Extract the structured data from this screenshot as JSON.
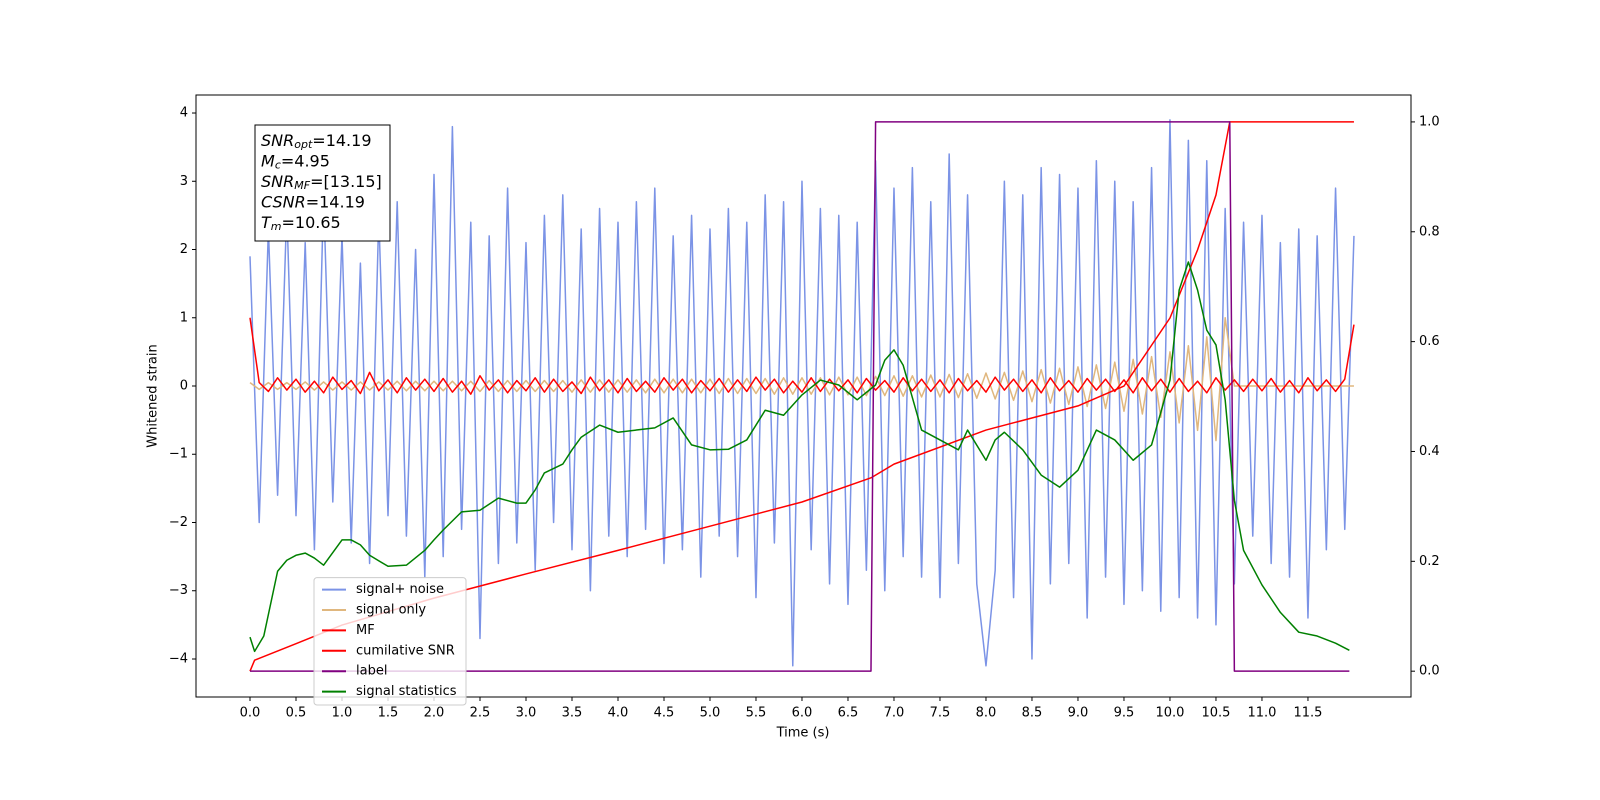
{
  "chart_data": {
    "type": "line",
    "xlabel": "Time (s)",
    "ylabel": "Whitened strain",
    "annotations": [
      {
        "name": "SNR",
        "sub": "opt",
        "text": "=14.19"
      },
      {
        "name": "M",
        "sub": "c",
        "text": "=4.95"
      },
      {
        "name": "SNR",
        "sub": "MF",
        "text": "=[13.15]"
      },
      {
        "name": "CSNR",
        "sub": "",
        "text": "=14.19"
      },
      {
        "name": "T",
        "sub": "m",
        "text": "=10.65"
      }
    ],
    "legend": "lower left",
    "xlim": [
      -0.587,
      12.62
    ],
    "ylim": [
      -4.557,
      4.264
    ],
    "y2lim": [
      -0.047,
      1.049
    ],
    "xticks": [
      {
        "value": 0,
        "label": "0.0"
      },
      {
        "value": 0.5,
        "label": "0.5"
      },
      {
        "value": 1,
        "label": "1.0"
      },
      {
        "value": 1.5,
        "label": "1.5"
      },
      {
        "value": 2,
        "label": "2.0"
      },
      {
        "value": 2.5,
        "label": "2.5"
      },
      {
        "value": 3,
        "label": "3.0"
      },
      {
        "value": 3.5,
        "label": "3.5"
      },
      {
        "value": 4,
        "label": "4.0"
      },
      {
        "value": 4.5,
        "label": "4.5"
      },
      {
        "value": 5,
        "label": "5.0"
      },
      {
        "value": 5.5,
        "label": "5.5"
      },
      {
        "value": 6,
        "label": "6.0"
      },
      {
        "value": 6.5,
        "label": "6.5"
      },
      {
        "value": 7,
        "label": "7.0"
      },
      {
        "value": 7.5,
        "label": "7.5"
      },
      {
        "value": 8,
        "label": "8.0"
      },
      {
        "value": 8.5,
        "label": "8.5"
      },
      {
        "value": 9,
        "label": "9.0"
      },
      {
        "value": 9.5,
        "label": "9.5"
      },
      {
        "value": 10,
        "label": "10.0"
      },
      {
        "value": 10.5,
        "label": "10.5"
      },
      {
        "value": 11,
        "label": "11.0"
      },
      {
        "value": 11.5,
        "label": "11.5"
      }
    ],
    "yticks": [
      {
        "value": -4,
        "label": "−4"
      },
      {
        "value": -3,
        "label": "−3"
      },
      {
        "value": -2,
        "label": "−2"
      },
      {
        "value": -1,
        "label": "−1"
      },
      0,
      1,
      2,
      3,
      4
    ],
    "y2ticks": [
      {
        "value": 0,
        "label": "0.0"
      },
      {
        "value": 0.2,
        "label": "0.2"
      },
      {
        "value": 0.4,
        "label": "0.4"
      },
      {
        "value": 0.6,
        "label": "0.6"
      },
      {
        "value": 0.8,
        "label": "0.8"
      },
      {
        "value": 1,
        "label": "1.0"
      }
    ],
    "x": [
      0,
      0.1,
      0.2,
      0.3,
      0.4,
      0.5,
      0.6,
      0.7,
      0.8,
      0.9,
      1,
      1.1,
      1.2,
      1.3,
      1.4,
      1.5,
      1.6,
      1.7,
      1.8,
      1.9,
      2,
      2.1,
      2.2,
      2.3,
      2.4,
      2.5,
      2.6,
      2.7,
      2.8,
      2.9,
      3,
      3.1,
      3.2,
      3.3,
      3.4,
      3.5,
      3.6,
      3.7,
      3.8,
      3.9,
      4,
      4.1,
      4.2,
      4.3,
      4.4,
      4.5,
      4.6,
      4.7,
      4.8,
      4.9,
      5,
      5.1,
      5.2,
      5.3,
      5.4,
      5.5,
      5.6,
      5.7,
      5.8,
      5.9,
      6,
      6.1,
      6.2,
      6.3,
      6.4,
      6.5,
      6.6,
      6.7,
      6.8,
      6.9,
      7,
      7.1,
      7.2,
      7.3,
      7.4,
      7.5,
      7.6,
      7.7,
      7.8,
      7.9,
      8,
      8.1,
      8.2,
      8.3,
      8.4,
      8.5,
      8.6,
      8.7,
      8.8,
      8.9,
      9,
      9.1,
      9.2,
      9.3,
      9.4,
      9.5,
      9.6,
      9.7,
      9.8,
      9.9,
      10,
      10.1,
      10.2,
      10.3,
      10.4,
      10.5,
      10.6,
      10.7,
      10.8,
      10.9,
      11,
      11.1,
      11.2,
      11.3,
      11.4,
      11.5,
      11.6,
      11.7,
      11.8,
      11.9,
      12
    ],
    "series": [
      {
        "name": "signal+ noise",
        "color": "#7b93e6",
        "values": [
          1.9,
          -2.0,
          2.3,
          -1.6,
          2.6,
          -1.9,
          2.1,
          -2.4,
          2.8,
          -1.7,
          2.2,
          -2.3,
          1.8,
          -2.6,
          2.5,
          -1.9,
          2.7,
          -2.2,
          2.0,
          -2.8,
          3.1,
          -2.5,
          3.8,
          -2.1,
          2.4,
          -3.7,
          2.2,
          -2.6,
          2.9,
          -2.3,
          2.1,
          -2.7,
          2.5,
          -2.0,
          2.8,
          -2.4,
          2.3,
          -3.0,
          2.6,
          -2.2,
          2.4,
          -2.5,
          2.7,
          -2.1,
          2.9,
          -2.6,
          2.2,
          -2.4,
          2.5,
          -2.8,
          2.3,
          -2.2,
          2.6,
          -2.5,
          2.4,
          -3.1,
          2.8,
          -2.3,
          2.7,
          -4.1,
          3.0,
          -2.4,
          2.6,
          -2.9,
          2.5,
          -3.2,
          2.4,
          -2.7,
          3.3,
          -3.0,
          2.9,
          -2.5,
          3.2,
          -2.8,
          2.7,
          -3.1,
          3.4,
          -2.6,
          2.8,
          -2.9,
          -4.1,
          -2.7,
          3.0,
          -3.1,
          2.8,
          -4.0,
          3.2,
          -2.9,
          3.1,
          -2.6,
          2.9,
          -3.4,
          3.3,
          -2.8,
          3.0,
          -3.2,
          2.7,
          -3.0,
          3.2,
          -3.3,
          3.9,
          -3.1,
          3.6,
          -3.4,
          3.3,
          -3.5,
          2.6,
          -2.9,
          2.4,
          -2.2,
          2.5,
          -2.6,
          2.1,
          -2.8,
          2.3,
          -3.4,
          2.2,
          -2.4,
          2.9,
          -2.1,
          2.2
        ]
      },
      {
        "name": "signal only",
        "color": "#e0b77e",
        "values": [
          0.05,
          -0.05,
          0.05,
          -0.05,
          0.05,
          -0.05,
          0.06,
          -0.06,
          0.06,
          -0.06,
          0.06,
          -0.06,
          0.06,
          -0.06,
          0.06,
          -0.06,
          0.07,
          -0.07,
          0.07,
          -0.07,
          0.07,
          -0.07,
          0.07,
          -0.07,
          0.07,
          -0.08,
          0.08,
          -0.08,
          0.08,
          -0.08,
          0.08,
          -0.08,
          0.08,
          -0.08,
          0.08,
          -0.09,
          0.09,
          -0.09,
          0.09,
          -0.09,
          0.09,
          -0.09,
          0.09,
          -0.1,
          0.1,
          -0.1,
          0.1,
          -0.1,
          0.1,
          -0.1,
          0.1,
          -0.11,
          0.11,
          -0.11,
          0.11,
          -0.11,
          0.11,
          -0.12,
          0.12,
          -0.12,
          0.12,
          -0.12,
          0.12,
          -0.13,
          0.13,
          -0.13,
          0.13,
          -0.14,
          0.14,
          -0.14,
          0.15,
          -0.15,
          0.15,
          -0.16,
          0.16,
          -0.16,
          0.17,
          -0.17,
          0.18,
          -0.18,
          0.19,
          -0.19,
          0.2,
          -0.21,
          0.22,
          -0.23,
          0.24,
          -0.25,
          0.26,
          -0.27,
          0.28,
          -0.3,
          0.31,
          -0.33,
          0.35,
          -0.37,
          0.39,
          -0.41,
          0.43,
          -0.46,
          0.5,
          -0.54,
          0.59,
          -0.65,
          0.72,
          -0.8,
          1.0,
          0,
          0,
          0,
          0,
          0,
          0,
          0,
          0,
          0,
          0,
          0,
          0,
          0,
          0
        ]
      },
      {
        "name": "MF",
        "color": "#ff0000",
        "values": [
          1.0,
          0.05,
          -0.08,
          0.12,
          -0.06,
          0.1,
          -0.09,
          0.07,
          -0.1,
          0.13,
          -0.05,
          0.08,
          -0.11,
          0.2,
          -0.07,
          0.09,
          -0.1,
          0.12,
          -0.06,
          0.1,
          -0.08,
          0.11,
          -0.09,
          0.07,
          -0.12,
          0.15,
          -0.06,
          0.09,
          -0.1,
          0.08,
          -0.07,
          0.12,
          -0.09,
          0.1,
          -0.08,
          0.06,
          -0.11,
          0.13,
          -0.07,
          0.09,
          -0.1,
          0.11,
          -0.08,
          0.07,
          -0.09,
          0.12,
          -0.06,
          0.1,
          -0.1,
          0.08,
          -0.07,
          0.11,
          -0.09,
          0.09,
          -0.08,
          0.13,
          -0.06,
          0.1,
          -0.1,
          0.07,
          -0.09,
          0.12,
          -0.08,
          0.1,
          -0.07,
          0.09,
          -0.1,
          0.11,
          -0.06,
          0.08,
          -0.09,
          0.12,
          -0.07,
          0.1,
          -0.08,
          0.09,
          -0.1,
          0.11,
          -0.07,
          0.08,
          -0.09,
          0.13,
          -0.06,
          0.1,
          -0.08,
          0.09,
          -0.1,
          0.12,
          -0.07,
          0.08,
          -0.09,
          0.11,
          -0.06,
          0.1,
          -0.08,
          0.09,
          -0.1,
          0.12,
          -0.07,
          0.1,
          -0.09,
          0.11,
          -0.08,
          0.07,
          -0.1,
          0.12,
          -0.06,
          0.09,
          -0.08,
          0.1,
          -0.07,
          0.11,
          -0.09,
          0.08,
          -0.1,
          0.12,
          -0.07,
          0.09,
          -0.08,
          0.1,
          0.9
        ]
      },
      {
        "name": "cumilative SNR",
        "color": "#ff0000",
        "axis": "y2",
        "x": [
          0,
          0.05,
          0.5,
          1,
          2,
          3,
          4,
          5,
          6,
          6.75,
          7,
          8,
          9,
          9.5,
          10,
          10.3,
          10.5,
          10.65,
          12.0
        ],
        "values": [
          0,
          0.02,
          0.05,
          0.084,
          0.133,
          0.177,
          0.22,
          0.264,
          0.308,
          0.352,
          0.377,
          0.439,
          0.483,
          0.519,
          0.643,
          0.767,
          0.867,
          1.0,
          1.0
        ]
      },
      {
        "name": "label",
        "color": "#800080",
        "axis": "y2",
        "x": [
          0,
          6.75,
          6.8,
          10.65,
          10.7,
          11.95
        ],
        "values": [
          0,
          0,
          1,
          1,
          0,
          0
        ]
      },
      {
        "name": "signal statistics",
        "color": "#008000",
        "axis": "y2",
        "x": [
          0,
          0.05,
          0.15,
          0.3,
          0.4,
          0.5,
          0.6,
          0.7,
          0.8,
          1.0,
          1.1,
          1.2,
          1.3,
          1.5,
          1.7,
          1.9,
          2.0,
          2.1,
          2.3,
          2.5,
          2.7,
          2.9,
          3.0,
          3.1,
          3.2,
          3.4,
          3.5,
          3.6,
          3.8,
          4.0,
          4.2,
          4.4,
          4.6,
          4.8,
          5.0,
          5.2,
          5.4,
          5.6,
          5.8,
          6.0,
          6.2,
          6.4,
          6.6,
          6.8,
          6.9,
          7.0,
          7.1,
          7.3,
          7.5,
          7.7,
          7.8,
          8.0,
          8.1,
          8.2,
          8.4,
          8.6,
          8.8,
          9.0,
          9.2,
          9.4,
          9.6,
          9.8,
          10.0,
          10.1,
          10.2,
          10.3,
          10.4,
          10.5,
          10.6,
          10.7,
          10.8,
          11.0,
          11.2,
          11.4,
          11.6,
          11.8,
          11.95
        ],
        "values": [
          0.062,
          0.036,
          0.064,
          0.182,
          0.202,
          0.211,
          0.215,
          0.206,
          0.193,
          0.239,
          0.239,
          0.23,
          0.211,
          0.191,
          0.193,
          0.22,
          0.239,
          0.257,
          0.29,
          0.293,
          0.315,
          0.306,
          0.306,
          0.33,
          0.361,
          0.377,
          0.403,
          0.426,
          0.448,
          0.435,
          0.439,
          0.443,
          0.461,
          0.412,
          0.403,
          0.404,
          0.421,
          0.475,
          0.466,
          0.503,
          0.53,
          0.521,
          0.494,
          0.521,
          0.566,
          0.585,
          0.557,
          0.439,
          0.421,
          0.403,
          0.439,
          0.384,
          0.421,
          0.435,
          0.403,
          0.357,
          0.335,
          0.366,
          0.439,
          0.421,
          0.384,
          0.412,
          0.53,
          0.694,
          0.745,
          0.694,
          0.621,
          0.594,
          0.494,
          0.311,
          0.22,
          0.157,
          0.107,
          0.071,
          0.064,
          0.051,
          0.038
        ]
      }
    ]
  }
}
